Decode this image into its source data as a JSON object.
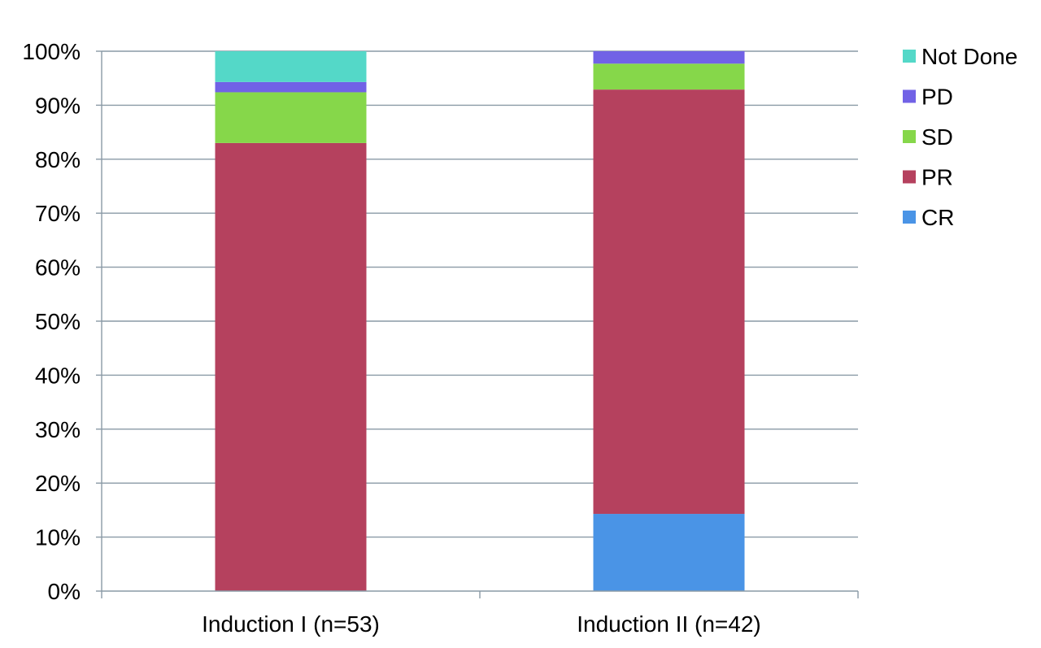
{
  "chart_data": {
    "type": "bar",
    "stacked": true,
    "percent": true,
    "categories": [
      "Induction I (n=53)",
      "Induction II (n=42)"
    ],
    "series": [
      {
        "name": "CR",
        "color": "#4a94e6",
        "values": [
          0,
          14.3
        ]
      },
      {
        "name": "PR",
        "color": "#b5415e",
        "values": [
          83.0,
          78.6
        ]
      },
      {
        "name": "SD",
        "color": "#86d74a",
        "values": [
          9.4,
          4.8
        ]
      },
      {
        "name": "PD",
        "color": "#7162e6",
        "values": [
          1.9,
          2.3
        ]
      },
      {
        "name": "Not Done",
        "color": "#54d8c8",
        "values": [
          5.7,
          0
        ]
      }
    ],
    "yticks": [
      "0%",
      "10%",
      "20%",
      "30%",
      "40%",
      "50%",
      "60%",
      "70%",
      "80%",
      "90%",
      "100%"
    ],
    "ylim": [
      0,
      100
    ],
    "grid": true,
    "legend_position": "right",
    "title": "",
    "xlabel": "",
    "ylabel": ""
  }
}
